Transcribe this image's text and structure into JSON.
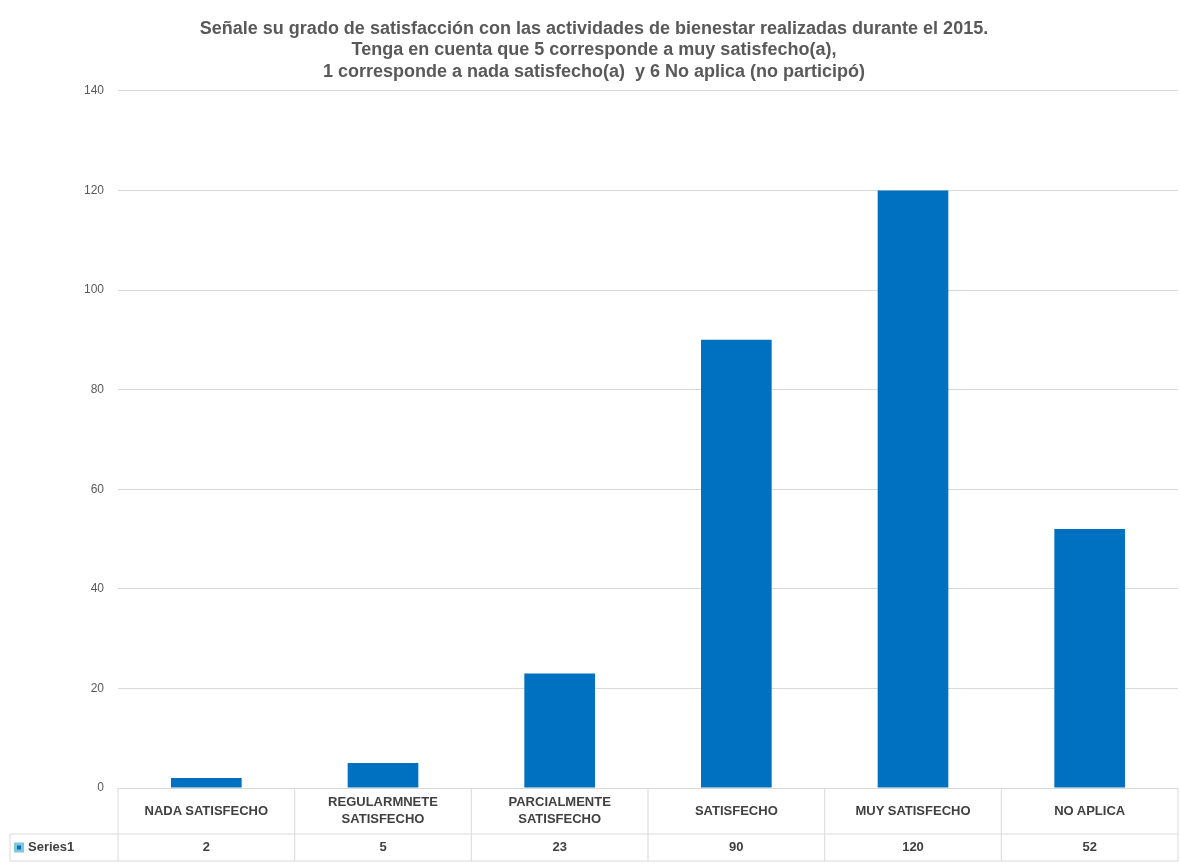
{
  "chart_data": {
    "type": "bar",
    "title": "Señale su grado de satisfacción con las actividades de bienestar realizadas durante el 2015.\nTenga en cuenta que 5 corresponde a muy satisfecho(a),\n1 corresponde a nada satisfecho(a)  y 6 No aplica (no participó)",
    "categories": [
      "NADA SATISFECHO",
      "REGULARMNETE SATISFECHO",
      "PARCIALMENTE SATISFECHO",
      "SATISFECHO",
      "MUY SATISFECHO",
      "NO APLICA"
    ],
    "series": [
      {
        "name": "Series1",
        "color": "#0070c0",
        "values": [
          2,
          5,
          23,
          90,
          120,
          52
        ]
      }
    ],
    "ylim": [
      0,
      140
    ],
    "yticks": [
      0,
      20,
      40,
      60,
      80,
      100,
      120,
      140
    ],
    "grid": "y",
    "legend": "bottom",
    "data_labels": true
  }
}
